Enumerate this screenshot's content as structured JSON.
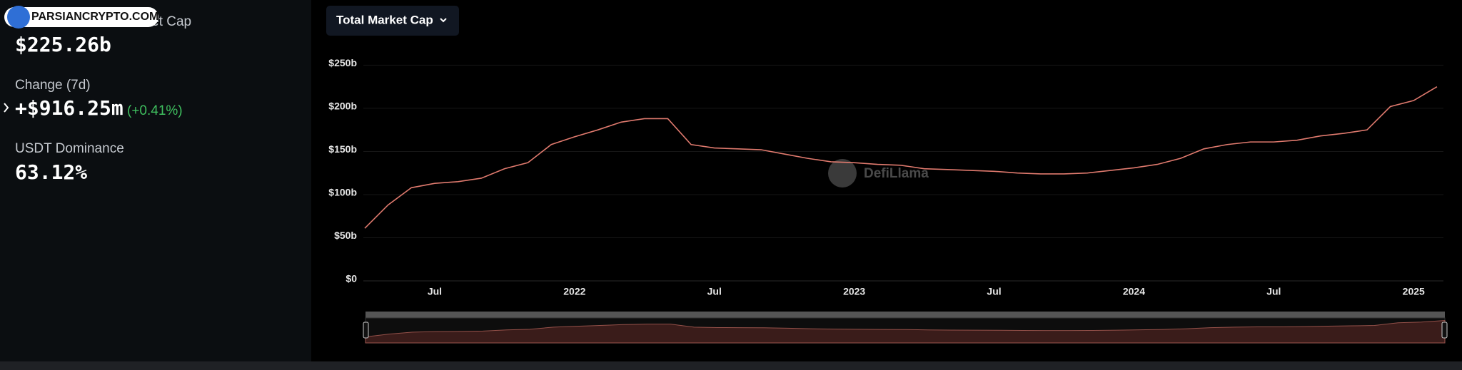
{
  "sidebar": {
    "market_cap_label": "Total Stablecoins Market Cap",
    "market_cap_value": "$225.26b",
    "change_label": "Change (7d)",
    "change_value": "+$916.25m",
    "change_percent": "(+0.41%)",
    "dominance_label": "USDT Dominance",
    "dominance_value": "63.12%"
  },
  "watermark": "PARSIANCRYPTO.COM",
  "dropdown": "Total Market Cap",
  "chart_data": {
    "type": "line",
    "logo": "DefiLlama",
    "color": "#e07a6e",
    "grid": true,
    "categories": [
      null,
      null,
      null,
      "Jul",
      null,
      null,
      null,
      null,
      null,
      "2022",
      null,
      null,
      null,
      null,
      null,
      "Jul",
      null,
      null,
      null,
      null,
      null,
      "2023",
      null,
      null,
      null,
      null,
      null,
      "Jul",
      null,
      null,
      null,
      null,
      null,
      "2024",
      null,
      null,
      null,
      null,
      null,
      "Jul",
      null,
      null,
      null,
      null,
      null,
      "2025",
      null
    ],
    "values": [
      61,
      88,
      108,
      113,
      115,
      119,
      130,
      137,
      158,
      167,
      175,
      184,
      188,
      188,
      158,
      154,
      153,
      152,
      147,
      142,
      138,
      137,
      135,
      134,
      130,
      129,
      128,
      127,
      125,
      124,
      124,
      125,
      128,
      131,
      135,
      142,
      153,
      158,
      161,
      161,
      163,
      168,
      171,
      175,
      202,
      209,
      225
    ],
    "ylim": [
      0,
      250
    ],
    "yticks": [
      {
        "value": 0,
        "label": "$0"
      },
      {
        "value": 50,
        "label": "$50b"
      },
      {
        "value": 100,
        "label": "$100b"
      },
      {
        "value": 150,
        "label": "$150b"
      },
      {
        "value": 200,
        "label": "$200b"
      },
      {
        "value": 250,
        "label": "$250b"
      }
    ]
  }
}
